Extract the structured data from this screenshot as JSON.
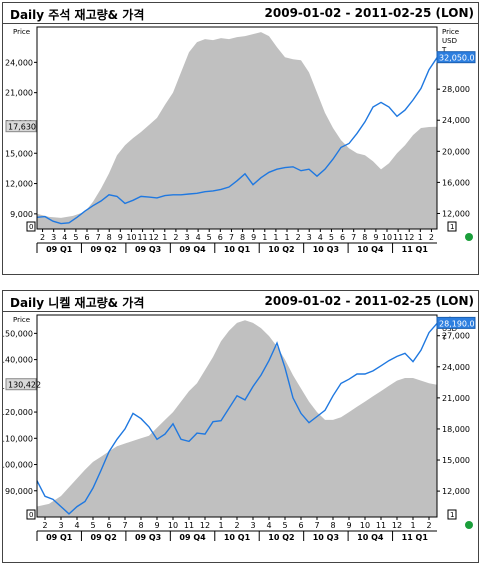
{
  "chart_data": [
    {
      "type": "area",
      "title": "Daily 주석 재고량& 가격",
      "date_range": "2009-01-02 - 2011-02-25 (LON)",
      "left_axis_label": "Price",
      "right_axis_label": [
        "Price",
        "USD",
        "T"
      ],
      "left_ylim": [
        7500,
        27500
      ],
      "right_ylim": [
        10000,
        36000
      ],
      "left_ticks": [
        "9,000",
        "12,000",
        "15,000",
        "18,000",
        "21,000",
        "24,000"
      ],
      "right_ticks": [
        "12,000",
        "16,000",
        "20,000",
        "24,000",
        "28,000"
      ],
      "current_left": "17,630",
      "current_right": "32,050.0",
      "month_ticks": [
        "2",
        "3",
        "4",
        "5",
        "6",
        "7",
        "8",
        "9",
        "10",
        "11",
        "12",
        "1",
        "2",
        "3",
        "4",
        "5",
        "6",
        "7",
        "8",
        "9",
        "1",
        "1",
        "1",
        "2",
        "3",
        "4",
        "5",
        "6",
        "7",
        "8",
        "9",
        "10",
        "11",
        "12",
        "1",
        "2"
      ],
      "quarters": [
        "09 Q1",
        "09 Q2",
        "09 Q3",
        "09 Q4",
        "10 Q1",
        "10 Q2",
        "10 Q3",
        "10 Q4",
        "11 Q1"
      ],
      "series": [
        {
          "role": "stock",
          "color": "#c0c0c0",
          "points": [
            [
              0,
              9000
            ],
            [
              0.03,
              8700
            ],
            [
              0.06,
              8600
            ],
            [
              0.09,
              8800
            ],
            [
              0.12,
              9200
            ],
            [
              0.14,
              10200
            ],
            [
              0.16,
              11500
            ],
            [
              0.18,
              13000
            ],
            [
              0.2,
              14800
            ],
            [
              0.22,
              15800
            ],
            [
              0.24,
              16500
            ],
            [
              0.26,
              17100
            ],
            [
              0.28,
              17800
            ],
            [
              0.3,
              18500
            ],
            [
              0.32,
              19800
            ],
            [
              0.34,
              21000
            ],
            [
              0.36,
              23000
            ],
            [
              0.38,
              25000
            ],
            [
              0.4,
              26000
            ],
            [
              0.42,
              26300
            ],
            [
              0.44,
              26200
            ],
            [
              0.46,
              26400
            ],
            [
              0.48,
              26300
            ],
            [
              0.5,
              26500
            ],
            [
              0.52,
              26600
            ],
            [
              0.54,
              26800
            ],
            [
              0.56,
              27000
            ],
            [
              0.58,
              26600
            ],
            [
              0.6,
              25500
            ],
            [
              0.62,
              24500
            ],
            [
              0.64,
              24300
            ],
            [
              0.66,
              24200
            ],
            [
              0.68,
              23000
            ],
            [
              0.7,
              21000
            ],
            [
              0.72,
              19000
            ],
            [
              0.74,
              17500
            ],
            [
              0.76,
              16300
            ],
            [
              0.78,
              15500
            ],
            [
              0.8,
              15000
            ],
            [
              0.82,
              14800
            ],
            [
              0.84,
              14200
            ],
            [
              0.86,
              13400
            ],
            [
              0.88,
              14000
            ],
            [
              0.9,
              15000
            ],
            [
              0.92,
              15800
            ],
            [
              0.94,
              16800
            ],
            [
              0.96,
              17500
            ],
            [
              0.98,
              17600
            ],
            [
              1,
              17630
            ]
          ]
        },
        {
          "role": "price",
          "color": "#1f78e0",
          "points": [
            [
              0,
              11500
            ],
            [
              0.02,
              11600
            ],
            [
              0.04,
              11000
            ],
            [
              0.06,
              10700
            ],
            [
              0.08,
              10800
            ],
            [
              0.1,
              11500
            ],
            [
              0.12,
              12300
            ],
            [
              0.14,
              13000
            ],
            [
              0.16,
              13600
            ],
            [
              0.18,
              14400
            ],
            [
              0.2,
              14200
            ],
            [
              0.22,
              13300
            ],
            [
              0.24,
              13700
            ],
            [
              0.26,
              14200
            ],
            [
              0.28,
              14100
            ],
            [
              0.3,
              14000
            ],
            [
              0.32,
              14300
            ],
            [
              0.34,
              14400
            ],
            [
              0.36,
              14400
            ],
            [
              0.38,
              14500
            ],
            [
              0.4,
              14600
            ],
            [
              0.42,
              14800
            ],
            [
              0.44,
              14900
            ],
            [
              0.46,
              15100
            ],
            [
              0.48,
              15400
            ],
            [
              0.5,
              16200
            ],
            [
              0.52,
              17100
            ],
            [
              0.54,
              15700
            ],
            [
              0.56,
              16600
            ],
            [
              0.58,
              17300
            ],
            [
              0.6,
              17700
            ],
            [
              0.62,
              17900
            ],
            [
              0.64,
              18000
            ],
            [
              0.66,
              17500
            ],
            [
              0.68,
              17700
            ],
            [
              0.7,
              16800
            ],
            [
              0.72,
              17700
            ],
            [
              0.74,
              19000
            ],
            [
              0.76,
              20500
            ],
            [
              0.78,
              21000
            ],
            [
              0.8,
              22300
            ],
            [
              0.82,
              23800
            ],
            [
              0.84,
              25700
            ],
            [
              0.86,
              26300
            ],
            [
              0.88,
              25700
            ],
            [
              0.9,
              24500
            ],
            [
              0.92,
              25300
            ],
            [
              0.94,
              26600
            ],
            [
              0.96,
              28100
            ],
            [
              0.98,
              30500
            ],
            [
              1,
              32050
            ]
          ]
        }
      ]
    },
    {
      "type": "area",
      "title": "Daily 니켈 재고량& 가격",
      "date_range": "2009-01-02 - 2011-02-25 (LON)",
      "left_axis_label": "Price",
      "right_axis_label": [
        "Price",
        "USD",
        "T"
      ],
      "left_ylim": [
        80000,
        157000
      ],
      "right_ylim": [
        9500,
        29000
      ],
      "left_ticks": [
        "90,000",
        "100,000",
        "110,000",
        "120,000",
        "130,000",
        "140,000",
        "150,000"
      ],
      "right_ticks": [
        "12,000",
        "15,000",
        "18,000",
        "21,000",
        "24,000",
        "27,000"
      ],
      "current_left": "130,422",
      "current_right": "28,190.0",
      "month_ticks": [
        "2",
        "3",
        "4",
        "5",
        "6",
        "7",
        "8",
        "9",
        "10",
        "11",
        "12",
        "1",
        "2",
        "3",
        "4",
        "5",
        "6",
        "7",
        "8",
        "9",
        "10",
        "11",
        "12",
        "1",
        "2"
      ],
      "quarters": [
        "09 Q1",
        "09 Q2",
        "09 Q3",
        "09 Q4",
        "10 Q1",
        "10 Q2",
        "10 Q3",
        "10 Q4",
        "11 Q1"
      ],
      "series": [
        {
          "role": "stock",
          "color": "#c0c0c0",
          "points": [
            [
              0,
              84000
            ],
            [
              0.03,
              85000
            ],
            [
              0.06,
              88000
            ],
            [
              0.09,
              93000
            ],
            [
              0.12,
              98000
            ],
            [
              0.14,
              101000
            ],
            [
              0.16,
              103000
            ],
            [
              0.18,
              105000
            ],
            [
              0.2,
              107000
            ],
            [
              0.22,
              108000
            ],
            [
              0.24,
              109000
            ],
            [
              0.26,
              110000
            ],
            [
              0.28,
              111000
            ],
            [
              0.3,
              114000
            ],
            [
              0.32,
              117000
            ],
            [
              0.34,
              120000
            ],
            [
              0.36,
              124000
            ],
            [
              0.38,
              128000
            ],
            [
              0.4,
              131000
            ],
            [
              0.42,
              136000
            ],
            [
              0.44,
              141000
            ],
            [
              0.46,
              147000
            ],
            [
              0.48,
              151000
            ],
            [
              0.5,
              154000
            ],
            [
              0.52,
              155000
            ],
            [
              0.54,
              154000
            ],
            [
              0.56,
              152000
            ],
            [
              0.58,
              149000
            ],
            [
              0.6,
              145000
            ],
            [
              0.62,
              140000
            ],
            [
              0.64,
              134000
            ],
            [
              0.66,
              129000
            ],
            [
              0.68,
              124000
            ],
            [
              0.7,
              120000
            ],
            [
              0.72,
              117000
            ],
            [
              0.74,
              117000
            ],
            [
              0.76,
              118000
            ],
            [
              0.78,
              120000
            ],
            [
              0.8,
              122000
            ],
            [
              0.82,
              124000
            ],
            [
              0.84,
              126000
            ],
            [
              0.86,
              128000
            ],
            [
              0.88,
              130000
            ],
            [
              0.9,
              132000
            ],
            [
              0.92,
              133000
            ],
            [
              0.94,
              133000
            ],
            [
              0.96,
              132000
            ],
            [
              0.98,
              131000
            ],
            [
              1,
              130422
            ]
          ]
        },
        {
          "role": "price",
          "color": "#1f78e0",
          "points": [
            [
              0,
              13000
            ],
            [
              0.02,
              11500
            ],
            [
              0.04,
              11200
            ],
            [
              0.06,
              10500
            ],
            [
              0.08,
              9800
            ],
            [
              0.1,
              10500
            ],
            [
              0.12,
              11000
            ],
            [
              0.14,
              12300
            ],
            [
              0.16,
              14000
            ],
            [
              0.18,
              15800
            ],
            [
              0.2,
              17000
            ],
            [
              0.22,
              18000
            ],
            [
              0.24,
              19500
            ],
            [
              0.26,
              19000
            ],
            [
              0.28,
              18200
            ],
            [
              0.3,
              17000
            ],
            [
              0.32,
              17500
            ],
            [
              0.34,
              18500
            ],
            [
              0.36,
              17000
            ],
            [
              0.38,
              16800
            ],
            [
              0.4,
              17600
            ],
            [
              0.42,
              17500
            ],
            [
              0.44,
              18700
            ],
            [
              0.46,
              18800
            ],
            [
              0.48,
              20000
            ],
            [
              0.5,
              21200
            ],
            [
              0.52,
              20800
            ],
            [
              0.54,
              22100
            ],
            [
              0.56,
              23200
            ],
            [
              0.58,
              24600
            ],
            [
              0.6,
              26300
            ],
            [
              0.62,
              23900
            ],
            [
              0.64,
              21000
            ],
            [
              0.66,
              19500
            ],
            [
              0.68,
              18600
            ],
            [
              0.7,
              19200
            ],
            [
              0.72,
              19800
            ],
            [
              0.74,
              21200
            ],
            [
              0.76,
              22400
            ],
            [
              0.78,
              22800
            ],
            [
              0.8,
              23300
            ],
            [
              0.82,
              23300
            ],
            [
              0.84,
              23600
            ],
            [
              0.86,
              24100
            ],
            [
              0.88,
              24600
            ],
            [
              0.9,
              25000
            ],
            [
              0.92,
              25300
            ],
            [
              0.94,
              24500
            ],
            [
              0.96,
              25600
            ],
            [
              0.98,
              27300
            ],
            [
              1,
              28190
            ]
          ]
        }
      ]
    }
  ]
}
